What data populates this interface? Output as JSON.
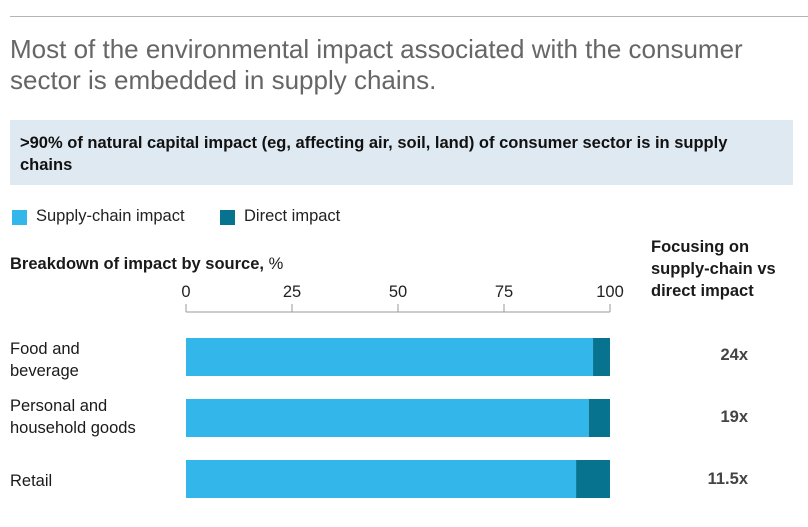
{
  "headline": {
    "line1": "Most of the environmental impact associated with the consumer",
    "line2": "sector is embedded in supply chains."
  },
  "callout": ">90% of natural capital impact (eg, affecting air, soil, land) of consumer sector is in supply chains",
  "legend": {
    "supply": {
      "label": "Supply-chain impact",
      "color": "#33b6ea"
    },
    "direct": {
      "label": "Direct impact",
      "color": "#07738f"
    }
  },
  "subtitle": {
    "bold": "Breakdown of impact by source,",
    "unit": " %"
  },
  "side_header": "Focusing on supply-chain vs direct impact",
  "chart_data": {
    "type": "bar",
    "orientation": "horizontal",
    "stacked": true,
    "xlim": [
      0,
      100
    ],
    "xticks": [
      "0",
      "25",
      "50",
      "75",
      "100"
    ],
    "categories": [
      {
        "line1": "Food and",
        "line2": "beverage"
      },
      {
        "line1": "Personal and",
        "line2": "household goods"
      },
      {
        "line1": "Retail",
        "line2": ""
      }
    ],
    "series": [
      {
        "name": "Supply-chain impact",
        "color": "#33b6ea",
        "values": [
          96,
          95,
          92
        ]
      },
      {
        "name": "Direct impact",
        "color": "#07738f",
        "values": [
          4,
          5,
          8
        ]
      }
    ],
    "ratios": [
      "24x",
      "19x",
      "11.5x"
    ]
  }
}
